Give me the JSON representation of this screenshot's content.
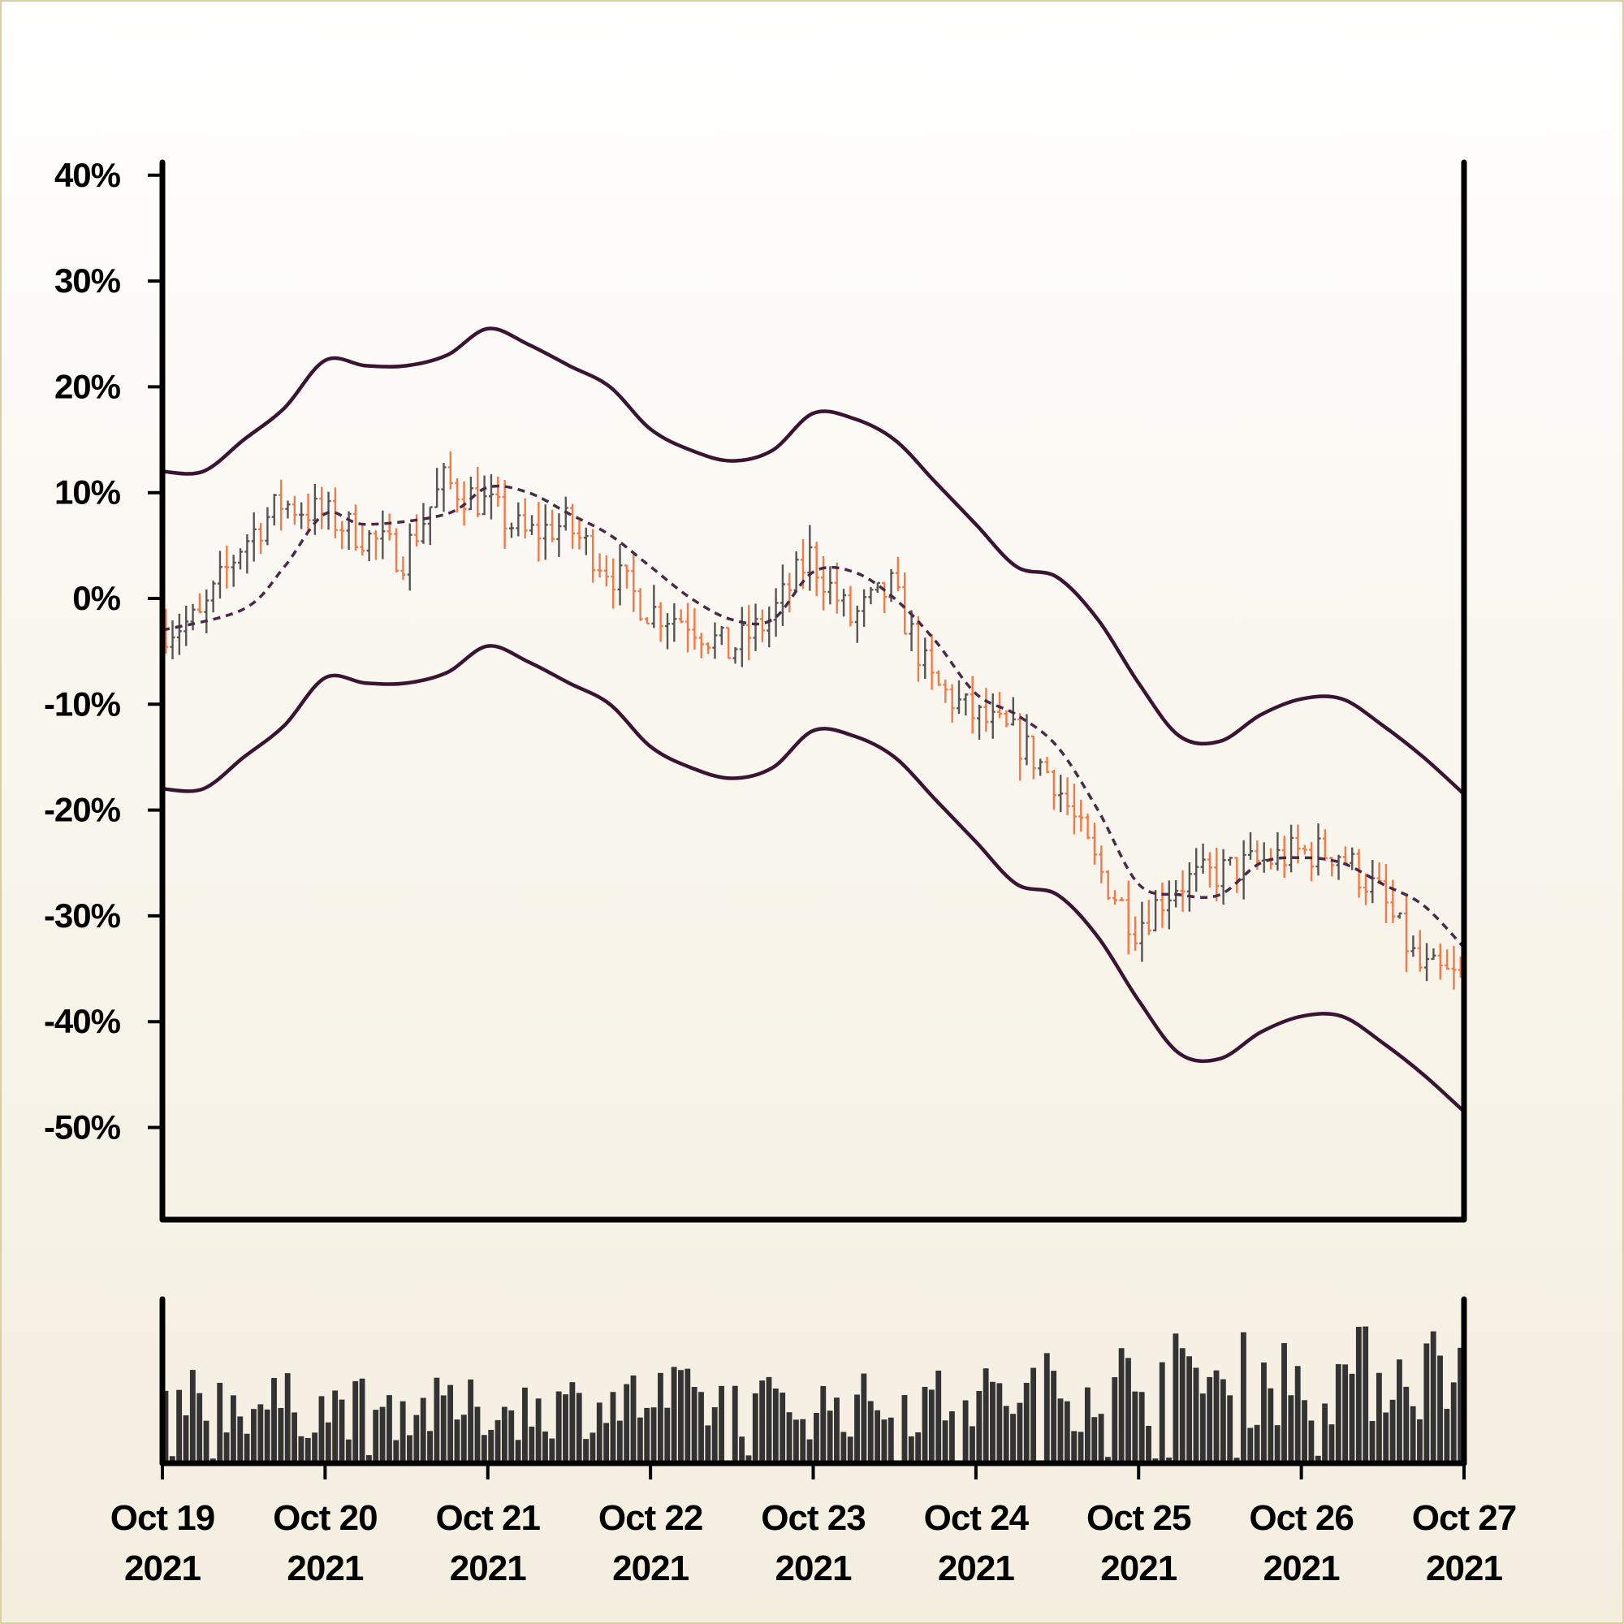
{
  "chart_data": {
    "type": "ohlc",
    "title": "",
    "xlabel": "",
    "ylabel": "",
    "ylim": [
      -60,
      40
    ],
    "y_ticks": [
      40,
      30,
      20,
      10,
      0,
      -10,
      -20,
      -30,
      -40,
      -50
    ],
    "y_tick_labels": [
      "40%",
      "30%",
      "20%",
      "10%",
      "0%",
      "-10%",
      "-20%",
      "-30%",
      "-40%",
      "-50%"
    ],
    "x_range": [
      "2021-10-19",
      "2021-10-27"
    ],
    "x_ticks": [
      {
        "date": "2021-10-19",
        "line1": "Oct 19",
        "line2": "2021"
      },
      {
        "date": "2021-10-20",
        "line1": "Oct 20",
        "line2": "2021"
      },
      {
        "date": "2021-10-21",
        "line1": "Oct 21",
        "line2": "2021"
      },
      {
        "date": "2021-10-22",
        "line1": "Oct 22",
        "line2": "2021"
      },
      {
        "date": "2021-10-23",
        "line1": "Oct 23",
        "line2": "2021"
      },
      {
        "date": "2021-10-24",
        "line1": "Oct 24",
        "line2": "2021"
      },
      {
        "date": "2021-10-25",
        "line1": "Oct 25",
        "line2": "2021"
      },
      {
        "date": "2021-10-26",
        "line1": "Oct 26",
        "line2": "2021"
      },
      {
        "date": "2021-10-27",
        "line1": "Oct 27",
        "line2": "2021"
      }
    ],
    "price_path": [
      [
        "2021-10-19T00:00",
        -3
      ],
      [
        "2021-10-19T06:00",
        -2
      ],
      [
        "2021-10-19T12:00",
        5
      ],
      [
        "2021-10-19T18:00",
        9
      ],
      [
        "2021-10-20T00:00",
        8
      ],
      [
        "2021-10-20T06:00",
        6
      ],
      [
        "2021-10-20T12:00",
        4
      ],
      [
        "2021-10-20T18:00",
        11
      ],
      [
        "2021-10-21T00:00",
        9
      ],
      [
        "2021-10-21T06:00",
        6
      ],
      [
        "2021-10-21T12:00",
        7
      ],
      [
        "2021-10-21T18:00",
        3
      ],
      [
        "2021-10-22T00:00",
        -1
      ],
      [
        "2021-10-22T06:00",
        -2
      ],
      [
        "2021-10-22T12:00",
        -5
      ],
      [
        "2021-10-22T18:00",
        -2
      ],
      [
        "2021-10-23T00:00",
        4
      ],
      [
        "2021-10-23T06:00",
        -2
      ],
      [
        "2021-10-23T12:00",
        1
      ],
      [
        "2021-10-23T18:00",
        -8
      ],
      [
        "2021-10-24T00:00",
        -11
      ],
      [
        "2021-10-24T06:00",
        -13
      ],
      [
        "2021-10-24T12:00",
        -17
      ],
      [
        "2021-10-24T18:00",
        -25
      ],
      [
        "2021-10-25T00:00",
        -31
      ],
      [
        "2021-10-25T06:00",
        -27
      ],
      [
        "2021-10-25T12:00",
        -26
      ],
      [
        "2021-10-25T18:00",
        -25
      ],
      [
        "2021-10-26T00:00",
        -24
      ],
      [
        "2021-10-26T06:00",
        -24
      ],
      [
        "2021-10-26T12:00",
        -28
      ],
      [
        "2021-10-26T18:00",
        -35
      ],
      [
        "2021-10-27T00:00",
        -36
      ]
    ],
    "series": [
      {
        "type": "ohlc",
        "up_color": "#555555",
        "down_color": "#f07a4a"
      },
      {
        "type": "line",
        "style": "dashed",
        "color": "#4a2a48",
        "values": [
          [
            "2021-10-19T00:00",
            -3
          ],
          [
            "2021-10-19T12:00",
            -1
          ],
          [
            "2021-10-19T18:00",
            3
          ],
          [
            "2021-10-20T00:00",
            8
          ],
          [
            "2021-10-20T06:00",
            7
          ],
          [
            "2021-10-20T18:00",
            8
          ],
          [
            "2021-10-21T00:00",
            10.5
          ],
          [
            "2021-10-21T06:00",
            10
          ],
          [
            "2021-10-21T12:00",
            8
          ],
          [
            "2021-10-21T18:00",
            6
          ],
          [
            "2021-10-22T00:00",
            3
          ],
          [
            "2021-10-22T06:00",
            0
          ],
          [
            "2021-10-22T12:00",
            -2
          ],
          [
            "2021-10-22T18:00",
            -2
          ],
          [
            "2021-10-23T00:00",
            2.5
          ],
          [
            "2021-10-23T06:00",
            2.5
          ],
          [
            "2021-10-23T12:00",
            0
          ],
          [
            "2021-10-23T18:00",
            -4
          ],
          [
            "2021-10-24T00:00",
            -9
          ],
          [
            "2021-10-24T06:00",
            -11
          ],
          [
            "2021-10-24T12:00",
            -14
          ],
          [
            "2021-10-24T18:00",
            -20
          ],
          [
            "2021-10-25T00:00",
            -27
          ],
          [
            "2021-10-25T06:00",
            -28
          ],
          [
            "2021-10-25T12:00",
            -28
          ],
          [
            "2021-10-25T18:00",
            -25
          ],
          [
            "2021-10-26T00:00",
            -24.5
          ],
          [
            "2021-10-26T06:00",
            -25
          ],
          [
            "2021-10-26T12:00",
            -27
          ],
          [
            "2021-10-26T18:00",
            -29
          ],
          [
            "2021-10-27T00:00",
            -33
          ]
        ]
      },
      {
        "type": "line",
        "style": "solid",
        "color": "#3a1432",
        "values": [
          [
            "2021-10-19T00:00",
            12
          ],
          [
            "2021-10-19T06:00",
            12
          ],
          [
            "2021-10-19T12:00",
            15
          ],
          [
            "2021-10-19T18:00",
            18
          ],
          [
            "2021-10-20T00:00",
            22.5
          ],
          [
            "2021-10-20T06:00",
            22
          ],
          [
            "2021-10-20T12:00",
            22
          ],
          [
            "2021-10-20T18:00",
            23
          ],
          [
            "2021-10-21T00:00",
            25.5
          ],
          [
            "2021-10-21T06:00",
            24
          ],
          [
            "2021-10-21T12:00",
            22
          ],
          [
            "2021-10-21T18:00",
            20
          ],
          [
            "2021-10-22T00:00",
            16
          ],
          [
            "2021-10-22T06:00",
            14
          ],
          [
            "2021-10-22T12:00",
            13
          ],
          [
            "2021-10-22T18:00",
            14
          ],
          [
            "2021-10-23T00:00",
            17.5
          ],
          [
            "2021-10-23T06:00",
            17
          ],
          [
            "2021-10-23T12:00",
            15
          ],
          [
            "2021-10-23T18:00",
            11
          ],
          [
            "2021-10-24T00:00",
            7
          ],
          [
            "2021-10-24T06:00",
            3
          ],
          [
            "2021-10-24T12:00",
            2
          ],
          [
            "2021-10-24T18:00",
            -2
          ],
          [
            "2021-10-25T00:00",
            -8
          ],
          [
            "2021-10-25T06:00",
            -13
          ],
          [
            "2021-10-25T12:00",
            -13.5
          ],
          [
            "2021-10-25T18:00",
            -11
          ],
          [
            "2021-10-26T00:00",
            -9.5
          ],
          [
            "2021-10-26T06:00",
            -9.5
          ],
          [
            "2021-10-26T12:00",
            -12
          ],
          [
            "2021-10-26T18:00",
            -15
          ],
          [
            "2021-10-27T00:00",
            -18.5
          ]
        ]
      },
      {
        "type": "line",
        "style": "solid",
        "color": "#3a1432",
        "values": [
          [
            "2021-10-19T00:00",
            -18
          ],
          [
            "2021-10-19T06:00",
            -18
          ],
          [
            "2021-10-19T12:00",
            -15
          ],
          [
            "2021-10-19T18:00",
            -12
          ],
          [
            "2021-10-20T00:00",
            -7.5
          ],
          [
            "2021-10-20T06:00",
            -8
          ],
          [
            "2021-10-20T12:00",
            -8
          ],
          [
            "2021-10-20T18:00",
            -7
          ],
          [
            "2021-10-21T00:00",
            -4.5
          ],
          [
            "2021-10-21T06:00",
            -6
          ],
          [
            "2021-10-21T12:00",
            -8
          ],
          [
            "2021-10-21T18:00",
            -10
          ],
          [
            "2021-10-22T00:00",
            -14
          ],
          [
            "2021-10-22T06:00",
            -16
          ],
          [
            "2021-10-22T12:00",
            -17
          ],
          [
            "2021-10-22T18:00",
            -16
          ],
          [
            "2021-10-23T00:00",
            -12.5
          ],
          [
            "2021-10-23T06:00",
            -13
          ],
          [
            "2021-10-23T12:00",
            -15
          ],
          [
            "2021-10-23T18:00",
            -19
          ],
          [
            "2021-10-24T00:00",
            -23
          ],
          [
            "2021-10-24T06:00",
            -27
          ],
          [
            "2021-10-24T12:00",
            -28
          ],
          [
            "2021-10-24T18:00",
            -32
          ],
          [
            "2021-10-25T00:00",
            -38
          ],
          [
            "2021-10-25T06:00",
            -43
          ],
          [
            "2021-10-25T12:00",
            -43.5
          ],
          [
            "2021-10-25T18:00",
            -41
          ],
          [
            "2021-10-26T00:00",
            -39.5
          ],
          [
            "2021-10-26T06:00",
            -39.5
          ],
          [
            "2021-10-26T12:00",
            -42
          ],
          [
            "2021-10-26T18:00",
            -45
          ],
          [
            "2021-10-27T00:00",
            -48.5
          ]
        ]
      },
      {
        "type": "bar",
        "role": "volume",
        "color": "#333333",
        "trend": [
          [
            "2021-10-19T00:00",
            0.45
          ],
          [
            "2021-10-20T00:00",
            0.4
          ],
          [
            "2021-10-21T00:00",
            0.38
          ],
          [
            "2021-10-22T00:00",
            0.45
          ],
          [
            "2021-10-23T00:00",
            0.4
          ],
          [
            "2021-10-24T00:00",
            0.45
          ],
          [
            "2021-10-25T00:00",
            0.6
          ],
          [
            "2021-10-26T00:00",
            0.6
          ],
          [
            "2021-10-27T00:00",
            0.7
          ]
        ]
      }
    ],
    "grid": false,
    "legend": "none"
  }
}
